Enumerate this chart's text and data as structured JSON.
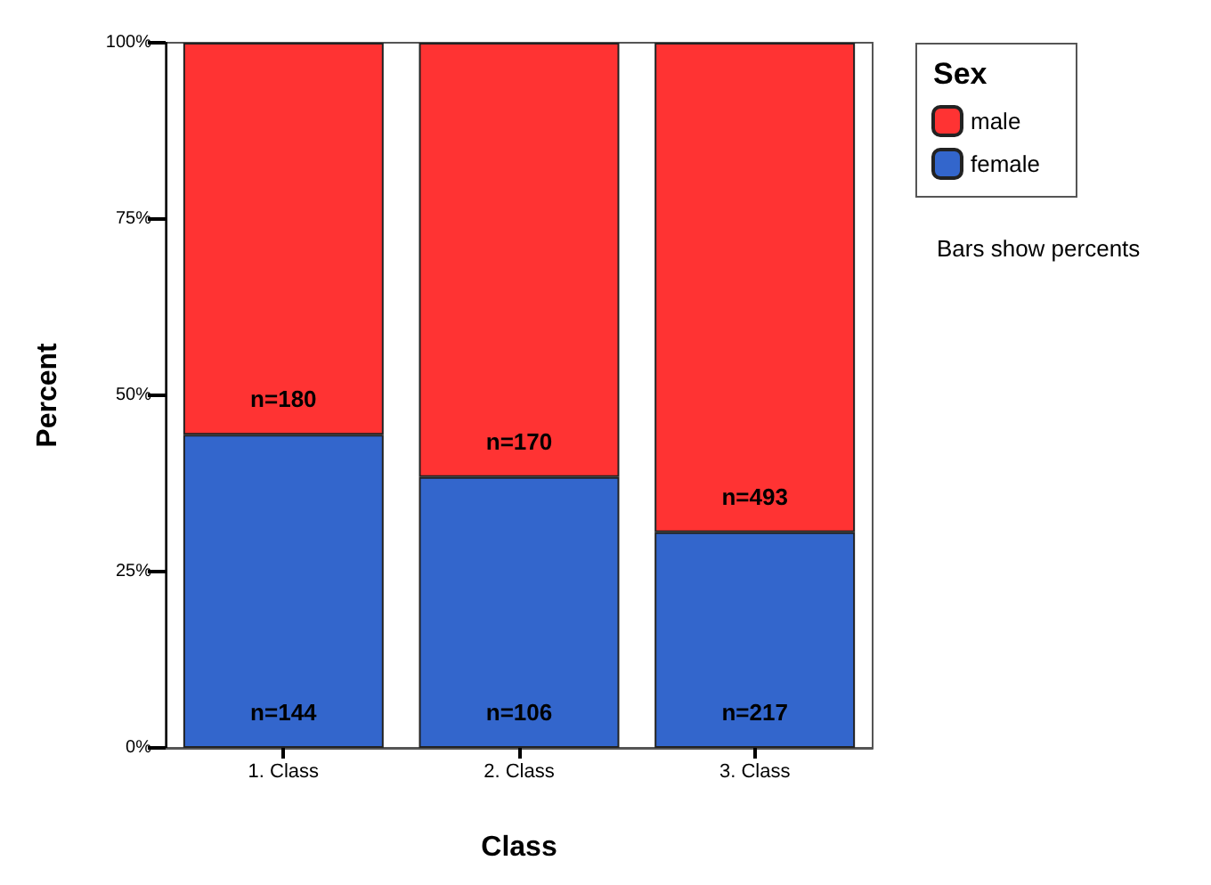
{
  "chart_data": {
    "type": "bar",
    "stacked": true,
    "xlabel": "Class",
    "ylabel": "Percent",
    "legend_title": "Sex",
    "legend": "right",
    "grid": false,
    "categories": [
      "1. Class",
      "2. Class",
      "3. Class"
    ],
    "series": [
      {
        "name": "female",
        "color": "#3366cc",
        "values": [
          44.4,
          38.4,
          30.6
        ]
      },
      {
        "name": "male",
        "color": "#ff3333",
        "values": [
          55.6,
          61.6,
          69.4
        ]
      }
    ],
    "ylim": [
      0,
      100
    ],
    "yticks": [
      {
        "value": 0,
        "label": "0%"
      },
      {
        "value": 25,
        "label": "25%"
      },
      {
        "value": 50,
        "label": "50%"
      },
      {
        "value": 75,
        "label": "75%"
      },
      {
        "value": 100,
        "label": "100%"
      }
    ],
    "annotations": [
      "Bars show percents",
      {
        "text": "n=144",
        "x": "1. Class",
        "y": 0
      },
      {
        "text": "n=106",
        "x": "2. Class",
        "y": 0
      },
      {
        "text": "n=217",
        "x": "3. Class",
        "y": 0
      },
      {
        "text": "n=180",
        "x": "1. Class",
        "y": 44.4
      },
      {
        "text": "n=170",
        "x": "2. Class",
        "y": 38.4
      },
      {
        "text": "n=493",
        "x": "3. Class",
        "y": 30.6
      }
    ]
  }
}
